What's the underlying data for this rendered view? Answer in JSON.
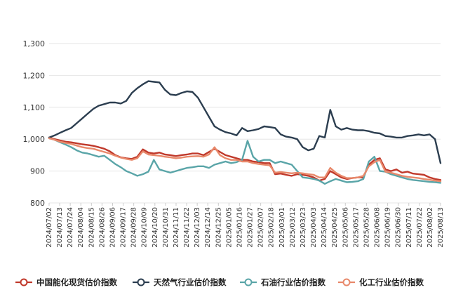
{
  "chart_data": {
    "type": "line",
    "title": "",
    "xlabel": "",
    "ylabel": "",
    "ylim": [
      800,
      1300
    ],
    "yticks": [
      800,
      900,
      1000,
      1100,
      1200,
      1300
    ],
    "ytick_labels": [
      "800",
      "900",
      "1,000",
      "1,100",
      "1,200",
      "1,300"
    ],
    "grid": true,
    "legend_position": "bottom",
    "xtick_labels": [
      "2024/07/02",
      "2024/07/13",
      "2024/07/24",
      "2024/08/04",
      "2024/08/15",
      "2024/08/26",
      "2024/09/06",
      "2024/09/17",
      "2024/09/28",
      "2024/10/09",
      "2024/10/20",
      "2024/10/31",
      "2024/11/11",
      "2024/11/22",
      "2024/12/03",
      "2024/12/14",
      "2024/12/25",
      "2025/01/05",
      "2025/01/16",
      "2025/01/27",
      "2025/02/07",
      "2025/02/18",
      "2025/03/01",
      "2025/03/12",
      "2025/03/23",
      "2025/04/03",
      "2025/04/14",
      "2025/04/25",
      "2025/05/06",
      "2025/05/17",
      "2025/05/28",
      "2025/06/08",
      "2025/06/19",
      "2025/06/30",
      "2025/07/11",
      "2025/07/22",
      "2025/08/02",
      "2025/08/13"
    ],
    "series": [
      {
        "name": "中国能化现货估价指数",
        "color": "#c0392b",
        "values": [
          1005,
          1000,
          996,
          992,
          990,
          987,
          984,
          982,
          979,
          975,
          970,
          962,
          950,
          943,
          940,
          938,
          945,
          968,
          958,
          955,
          958,
          952,
          950,
          947,
          950,
          952,
          955,
          955,
          950,
          960,
          970,
          960,
          950,
          945,
          940,
          935,
          935,
          930,
          928,
          925,
          925,
          890,
          892,
          888,
          885,
          890,
          888,
          885,
          880,
          870,
          875,
          900,
          890,
          880,
          875,
          878,
          880,
          880,
          920,
          935,
          940,
          905,
          900,
          905,
          895,
          898,
          892,
          890,
          888,
          880,
          875,
          872
        ]
      },
      {
        "name": "天然气行业估价指数",
        "color": "#2c3e50",
        "values": [
          1005,
          1012,
          1020,
          1028,
          1035,
          1050,
          1065,
          1080,
          1095,
          1105,
          1110,
          1115,
          1115,
          1112,
          1120,
          1145,
          1160,
          1172,
          1182,
          1180,
          1178,
          1155,
          1140,
          1138,
          1145,
          1150,
          1148,
          1130,
          1100,
          1070,
          1040,
          1030,
          1022,
          1018,
          1012,
          1035,
          1025,
          1028,
          1032,
          1040,
          1038,
          1035,
          1015,
          1008,
          1005,
          1000,
          975,
          965,
          970,
          1010,
          1005,
          1092,
          1040,
          1030,
          1035,
          1030,
          1028,
          1028,
          1025,
          1020,
          1018,
          1010,
          1008,
          1005,
          1005,
          1010,
          1012,
          1015,
          1012,
          1015,
          1000,
          925
        ]
      },
      {
        "name": "石油行业估价指数",
        "color": "#5aa5a8",
        "values": [
          1003,
          998,
          990,
          983,
          975,
          965,
          958,
          955,
          950,
          945,
          948,
          935,
          922,
          912,
          900,
          893,
          885,
          890,
          898,
          935,
          905,
          900,
          895,
          900,
          905,
          910,
          912,
          915,
          915,
          910,
          920,
          925,
          930,
          925,
          928,
          935,
          995,
          945,
          930,
          935,
          935,
          925,
          930,
          925,
          920,
          900,
          880,
          878,
          875,
          870,
          860,
          868,
          875,
          870,
          865,
          866,
          868,
          875,
          930,
          945,
          900,
          898,
          890,
          885,
          880,
          875,
          872,
          870,
          868,
          866,
          865,
          863
        ]
      },
      {
        "name": "化工行业估价指数",
        "color": "#e8896b",
        "values": [
          1003,
          998,
          992,
          988,
          985,
          980,
          975,
          972,
          970,
          965,
          960,
          955,
          948,
          942,
          938,
          935,
          940,
          962,
          952,
          950,
          948,
          945,
          943,
          940,
          942,
          945,
          946,
          947,
          945,
          952,
          975,
          950,
          940,
          935,
          935,
          930,
          930,
          925,
          922,
          920,
          918,
          895,
          897,
          895,
          893,
          895,
          893,
          890,
          888,
          880,
          880,
          910,
          895,
          885,
          878,
          878,
          880,
          885,
          915,
          928,
          935,
          898,
          895,
          890,
          885,
          882,
          880,
          878,
          875,
          873,
          870,
          868
        ]
      }
    ]
  }
}
